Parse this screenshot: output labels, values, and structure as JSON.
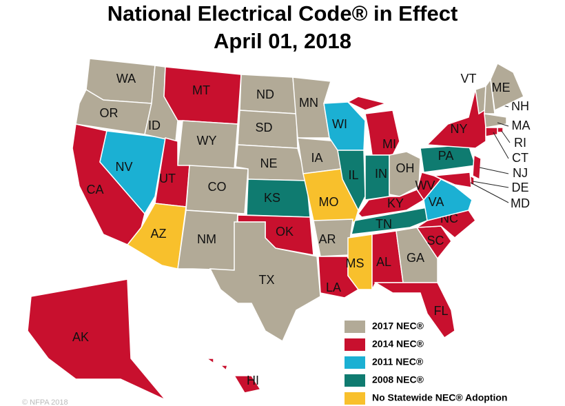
{
  "title": [
    "National Electrical Code® in Effect",
    "April 01, 2018"
  ],
  "legend": [
    {
      "label": "2017 NEC®",
      "color": "#b2aa97"
    },
    {
      "label": "2014 NEC®",
      "color": "#c8102e"
    },
    {
      "label": "2011 NEC®",
      "color": "#1bb0d3"
    },
    {
      "label": "2008 NEC®",
      "color": "#0f7b70"
    },
    {
      "label": "No Statewide NEC® Adoption",
      "color": "#f8c02c"
    }
  ],
  "states": [
    {
      "label": "WA",
      "category": 0
    },
    {
      "label": "OR",
      "category": 0
    },
    {
      "label": "CA",
      "category": 1
    },
    {
      "label": "NV",
      "category": 2
    },
    {
      "label": "ID",
      "category": 0
    },
    {
      "label": "MT",
      "category": 1
    },
    {
      "label": "WY",
      "category": 0
    },
    {
      "label": "UT",
      "category": 1
    },
    {
      "label": "AZ",
      "category": 4
    },
    {
      "label": "CO",
      "category": 0
    },
    {
      "label": "NM",
      "category": 0
    },
    {
      "label": "ND",
      "category": 0
    },
    {
      "label": "SD",
      "category": 0
    },
    {
      "label": "NE",
      "category": 0
    },
    {
      "label": "KS",
      "category": 3
    },
    {
      "label": "OK",
      "category": 1
    },
    {
      "label": "TX",
      "category": 0
    },
    {
      "label": "MN",
      "category": 0
    },
    {
      "label": "IA",
      "category": 0
    },
    {
      "label": "MO",
      "category": 4
    },
    {
      "label": "AR",
      "category": 0
    },
    {
      "label": "LA",
      "category": 1
    },
    {
      "label": "WI",
      "category": 2
    },
    {
      "label": "IL",
      "category": 3
    },
    {
      "label": "MI",
      "category": 1
    },
    {
      "label": "IN",
      "category": 3
    },
    {
      "label": "OH",
      "category": 0
    },
    {
      "label": "KY",
      "category": 1
    },
    {
      "label": "TN",
      "category": 3
    },
    {
      "label": "MS",
      "category": 4
    },
    {
      "label": "AL",
      "category": 1
    },
    {
      "label": "GA",
      "category": 0
    },
    {
      "label": "FL",
      "category": 1
    },
    {
      "label": "SC",
      "category": 1
    },
    {
      "label": "NC",
      "category": 1
    },
    {
      "label": "VA",
      "category": 2
    },
    {
      "label": "WV",
      "category": 1
    },
    {
      "label": "PA",
      "category": 3
    },
    {
      "label": "NY",
      "category": 1
    },
    {
      "label": "VT",
      "category": 0
    },
    {
      "label": "NH",
      "category": 0
    },
    {
      "label": "ME",
      "category": 0
    },
    {
      "label": "MA",
      "category": 0
    },
    {
      "label": "RI",
      "category": 1
    },
    {
      "label": "CT",
      "category": 1
    },
    {
      "label": "NJ",
      "category": 1
    },
    {
      "label": "DE",
      "category": 1
    },
    {
      "label": "MD",
      "category": 1
    },
    {
      "label": "AK",
      "category": 1
    },
    {
      "label": "HI",
      "category": 1
    }
  ],
  "copyright": "© NFPA 2018"
}
